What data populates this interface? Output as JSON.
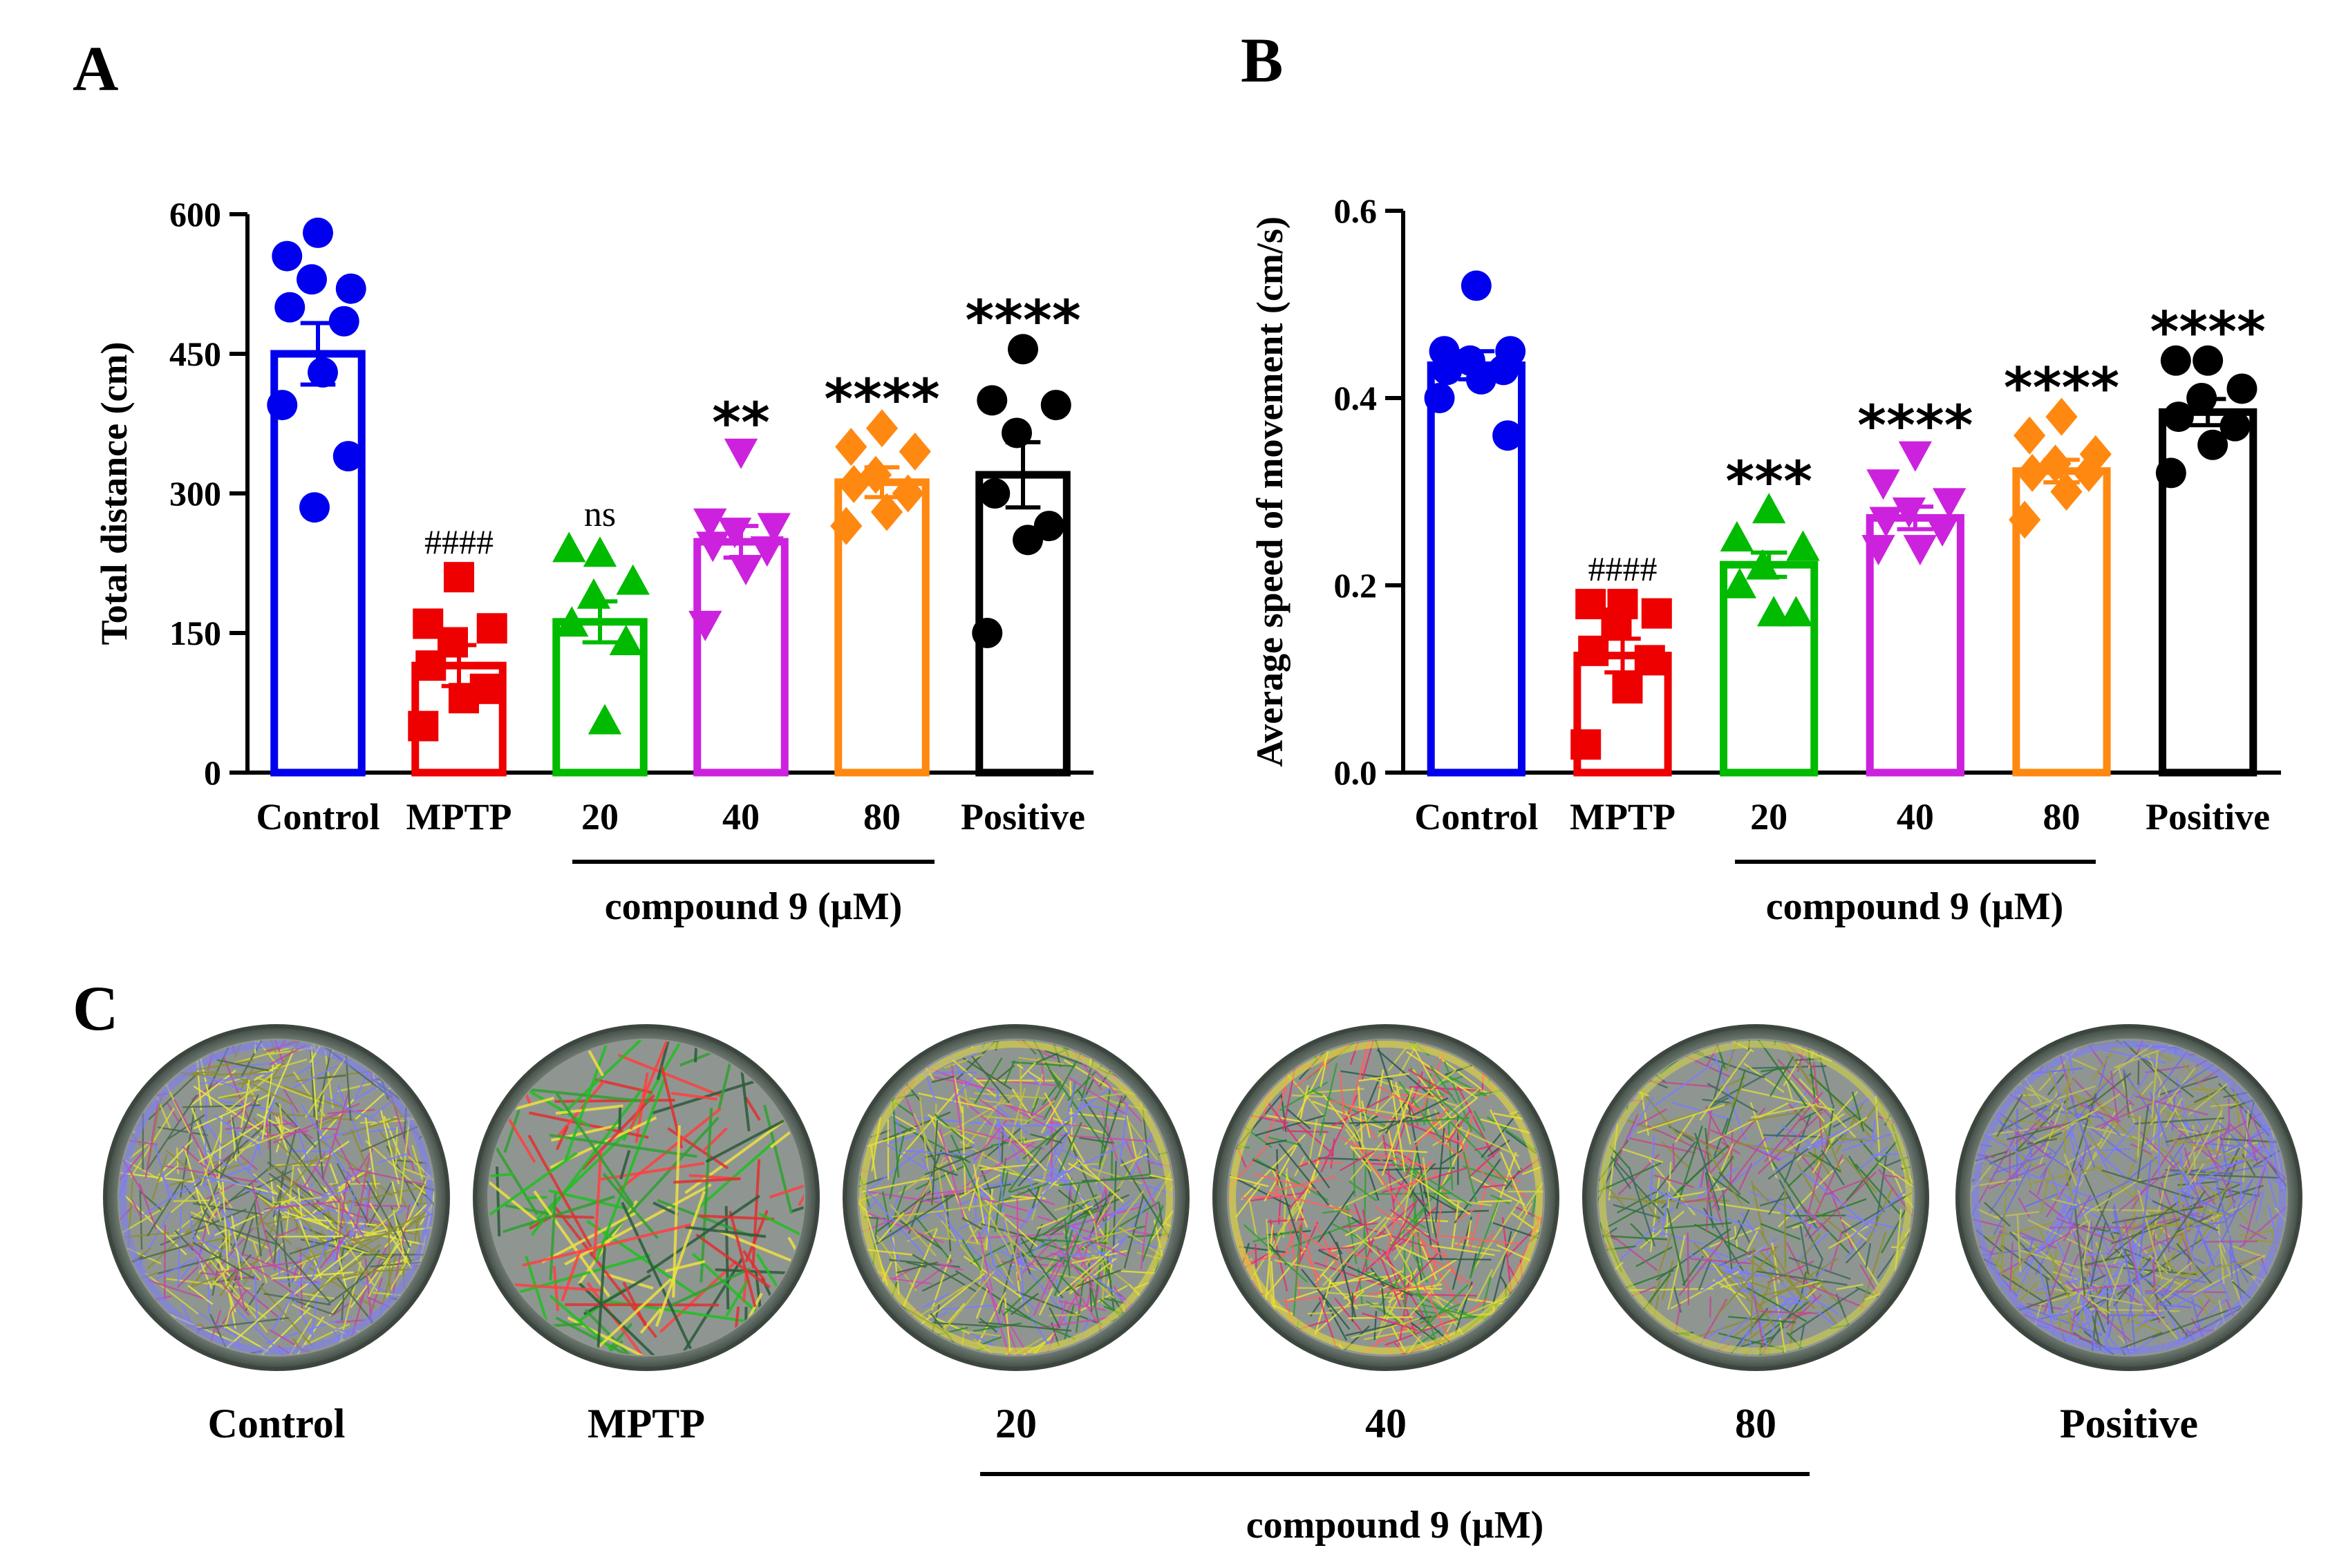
{
  "panels": {
    "a": "A",
    "b": "B",
    "c": "C"
  },
  "group_label": "compound 9 (µM)",
  "colors": [
    "#0000ee",
    "#ee0000",
    "#00bb00",
    "#cc22dd",
    "#ff8811",
    "#000000"
  ],
  "markers": [
    "circle",
    "square",
    "triangle",
    "triangle-down",
    "diamond",
    "circle"
  ],
  "chart_data": [
    {
      "type": "bar",
      "title": "",
      "xlabel": "",
      "ylabel": "Total distance (cm)",
      "ylim": [
        0,
        600
      ],
      "yticks": [
        "0",
        "150",
        "300",
        "450",
        "600"
      ],
      "categories": [
        "Control",
        "MPTP",
        "20",
        "40",
        "80",
        "Positive"
      ],
      "values": [
        450,
        115,
        162,
        248,
        312,
        320
      ],
      "sem": [
        33,
        22,
        22,
        17,
        16,
        35
      ],
      "significance": [
        "",
        "####",
        "ns",
        "**",
        "****",
        "****"
      ],
      "points": [
        [
          580,
          555,
          520,
          530,
          500,
          485,
          430,
          395,
          340,
          285
        ],
        [
          210,
          160,
          155,
          140,
          115,
          90,
          80,
          50
        ],
        [
          235,
          240,
          205,
          190,
          160,
          140,
          55
        ],
        [
          345,
          270,
          265,
          260,
          245,
          240,
          220,
          160
        ],
        [
          370,
          350,
          345,
          320,
          310,
          300,
          280,
          265
        ],
        [
          455,
          400,
          395,
          365,
          300,
          265,
          250,
          150
        ]
      ]
    },
    {
      "type": "bar",
      "title": "",
      "xlabel": "",
      "ylabel": "Average speed of movement (cm/s)",
      "ylim": [
        0,
        0.6
      ],
      "yticks": [
        "0.0",
        "0.2",
        "0.4",
        "0.6"
      ],
      "categories": [
        "Control",
        "MPTP",
        "20",
        "40",
        "80",
        "Positive"
      ],
      "values": [
        0.435,
        0.125,
        0.222,
        0.272,
        0.322,
        0.385
      ],
      "sem": [
        0.015,
        0.018,
        0.013,
        0.012,
        0.012,
        0.014
      ],
      "significance": [
        "",
        "####",
        "***",
        "****",
        "****",
        "****"
      ],
      "points": [
        [
          0.52,
          0.45,
          0.45,
          0.44,
          0.43,
          0.43,
          0.42,
          0.4,
          0.36
        ],
        [
          0.18,
          0.18,
          0.17,
          0.16,
          0.13,
          0.12,
          0.09,
          0.03
        ],
        [
          0.28,
          0.25,
          0.24,
          0.22,
          0.2,
          0.17,
          0.17
        ],
        [
          0.34,
          0.31,
          0.29,
          0.28,
          0.27,
          0.26,
          0.24,
          0.24
        ],
        [
          0.38,
          0.36,
          0.34,
          0.33,
          0.32,
          0.32,
          0.3,
          0.27
        ],
        [
          0.44,
          0.44,
          0.41,
          0.4,
          0.38,
          0.37,
          0.35,
          0.32
        ]
      ]
    }
  ],
  "dishes": {
    "labels": [
      "Control",
      "MPTP",
      "20",
      "40",
      "80",
      "Positive"
    ],
    "density": [
      0.95,
      0.25,
      0.9,
      0.85,
      0.7,
      1.0
    ],
    "palettes": [
      [
        "#7b7bff",
        "#d4d43a",
        "#8e8e2e",
        "#4a6a4a",
        "#c04aa0",
        "#e8e840"
      ],
      [
        "#e03030",
        "#20c020",
        "#f0e040",
        "#2a5a3a",
        "#ff4040",
        "#30a030"
      ],
      [
        "#e8e030",
        "#7b7bff",
        "#d04ab0",
        "#3a6a3a",
        "#c0c040",
        "#2a8a2a"
      ],
      [
        "#f0e030",
        "#e03070",
        "#30a030",
        "#2a5a4a",
        "#ff6060",
        "#d0d040"
      ],
      [
        "#d8d840",
        "#7b7bff",
        "#2a7a2a",
        "#c04a90",
        "#8e8e2e",
        "#3a6a5a"
      ],
      [
        "#7b7bff",
        "#9a9a30",
        "#6f6fe8",
        "#4a6a4a",
        "#c0c050",
        "#b050b0"
      ]
    ]
  }
}
